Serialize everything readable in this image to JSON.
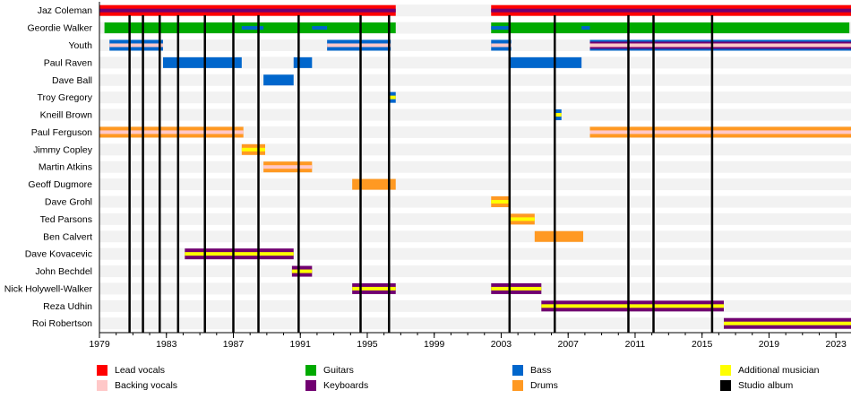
{
  "chart_data": {
    "type": "timeline",
    "xlim": [
      1979,
      2023.9
    ],
    "x_ticks": [
      1979,
      1983,
      1987,
      1991,
      1995,
      1999,
      2003,
      2007,
      2011,
      2015,
      2019,
      2023
    ],
    "minor_ticks": "yearly",
    "colors": {
      "lead_vocals": "#FF0000",
      "backing_vocals": "#FFC8C8",
      "guitars": "#00AA00",
      "keyboards": "#710071",
      "bass": "#0066CC",
      "drums": "#FF9922",
      "additional": "#FFFF00",
      "album": "#000000",
      "row_bg": "#F2F2F2"
    },
    "members": [
      {
        "name": "Jaz Coleman",
        "periods": [
          {
            "start": 1979,
            "end": 1996.7,
            "role": "lead_vocals",
            "stripes": [
              "keyboards"
            ]
          },
          {
            "start": 2002.4,
            "end": 2023.9,
            "role": "lead_vocals",
            "stripes": [
              "keyboards"
            ]
          }
        ]
      },
      {
        "name": "Geordie Walker",
        "periods": [
          {
            "start": 1979.3,
            "end": 1996.7,
            "role": "guitars",
            "stripes": []
          },
          {
            "start": 1987.5,
            "end": 1988.8,
            "role": "guitars",
            "stripes": [
              "bass"
            ],
            "overlay": true
          },
          {
            "start": 1991.7,
            "end": 1992.6,
            "role": "guitars",
            "stripes": [
              "bass"
            ],
            "overlay": true
          },
          {
            "start": 2002.4,
            "end": 2023.8,
            "role": "guitars",
            "stripes": []
          },
          {
            "start": 2002.4,
            "end": 2003.5,
            "role": "guitars",
            "stripes": [
              "bass"
            ],
            "overlay": true
          },
          {
            "start": 2007.8,
            "end": 2008.3,
            "role": "guitars",
            "stripes": [
              "bass"
            ],
            "overlay": true
          }
        ]
      },
      {
        "name": "Youth",
        "periods": [
          {
            "start": 1979.6,
            "end": 1982.8,
            "role": "bass",
            "stripes": [
              "backing_vocals"
            ]
          },
          {
            "start": 1992.6,
            "end": 1996.4,
            "role": "bass",
            "stripes": [
              "backing_vocals"
            ]
          },
          {
            "start": 2002.4,
            "end": 2003.6,
            "role": "bass",
            "stripes": [
              "backing_vocals"
            ]
          },
          {
            "start": 2008.3,
            "end": 2023.9,
            "role": "bass",
            "stripes": [
              "keyboards",
              "backing_vocals"
            ]
          }
        ]
      },
      {
        "name": "Paul Raven",
        "periods": [
          {
            "start": 1982.8,
            "end": 1987.5,
            "role": "bass",
            "stripes": []
          },
          {
            "start": 1990.6,
            "end": 1991.7,
            "role": "bass",
            "stripes": []
          },
          {
            "start": 2003.5,
            "end": 2007.8,
            "role": "bass",
            "stripes": []
          }
        ]
      },
      {
        "name": "Dave Ball",
        "periods": [
          {
            "start": 1988.8,
            "end": 1990.6,
            "role": "bass",
            "stripes": []
          }
        ]
      },
      {
        "name": "Troy Gregory",
        "periods": [
          {
            "start": 1996.3,
            "end": 1996.7,
            "role": "bass",
            "stripes": [
              "additional"
            ]
          }
        ]
      },
      {
        "name": "Kneill Brown",
        "periods": [
          {
            "start": 2006.2,
            "end": 2006.6,
            "role": "bass",
            "stripes": [
              "additional"
            ]
          }
        ]
      },
      {
        "name": "Paul Ferguson",
        "periods": [
          {
            "start": 1979,
            "end": 1987.6,
            "role": "drums",
            "stripes": [
              "backing_vocals"
            ]
          },
          {
            "start": 2008.3,
            "end": 2023.9,
            "role": "drums",
            "stripes": [
              "backing_vocals"
            ]
          }
        ]
      },
      {
        "name": "Jimmy Copley",
        "periods": [
          {
            "start": 1987.5,
            "end": 1988.9,
            "role": "drums",
            "stripes": [
              "additional"
            ]
          }
        ]
      },
      {
        "name": "Martin Atkins",
        "periods": [
          {
            "start": 1988.8,
            "end": 1991.7,
            "role": "drums",
            "stripes": [
              "backing_vocals"
            ]
          }
        ]
      },
      {
        "name": "Geoff Dugmore",
        "periods": [
          {
            "start": 1994.1,
            "end": 1996.7,
            "role": "drums",
            "stripes": []
          }
        ]
      },
      {
        "name": "Dave Grohl",
        "periods": [
          {
            "start": 2002.4,
            "end": 2003.5,
            "role": "drums",
            "stripes": [
              "additional"
            ]
          }
        ]
      },
      {
        "name": "Ted Parsons",
        "periods": [
          {
            "start": 2003.5,
            "end": 2005.0,
            "role": "drums",
            "stripes": [
              "additional"
            ]
          }
        ]
      },
      {
        "name": "Ben Calvert",
        "periods": [
          {
            "start": 2005.0,
            "end": 2007.9,
            "role": "drums",
            "stripes": []
          }
        ]
      },
      {
        "name": "Dave Kovacevic",
        "periods": [
          {
            "start": 1984.1,
            "end": 1990.6,
            "role": "keyboards",
            "stripes": [
              "additional"
            ]
          }
        ]
      },
      {
        "name": "John Bechdel",
        "periods": [
          {
            "start": 1990.5,
            "end": 1991.7,
            "role": "keyboards",
            "stripes": [
              "additional"
            ]
          }
        ]
      },
      {
        "name": "Nick Holywell-Walker",
        "periods": [
          {
            "start": 1994.1,
            "end": 1996.7,
            "role": "keyboards",
            "stripes": [
              "additional"
            ]
          },
          {
            "start": 2002.4,
            "end": 2005.4,
            "role": "keyboards",
            "stripes": [
              "additional"
            ]
          }
        ]
      },
      {
        "name": "Reza Udhin",
        "periods": [
          {
            "start": 2005.4,
            "end": 2016.3,
            "role": "keyboards",
            "stripes": [
              "additional"
            ]
          }
        ]
      },
      {
        "name": "Roi Robertson",
        "periods": [
          {
            "start": 2016.3,
            "end": 2023.9,
            "role": "keyboards",
            "stripes": [
              "additional"
            ]
          }
        ]
      }
    ],
    "studio_albums": [
      1980.8,
      1981.6,
      1982.6,
      1983.7,
      1985.3,
      1987.0,
      1988.5,
      1990.9,
      1994.6,
      1996.3,
      2003.5,
      2006.2,
      2010.6,
      2012.1,
      2015.6
    ],
    "legend": [
      {
        "label": "Lead vocals",
        "color": "#FF0000"
      },
      {
        "label": "Backing vocals",
        "color": "#FFC8C8"
      },
      {
        "label": "Guitars",
        "color": "#00AA00"
      },
      {
        "label": "Keyboards",
        "color": "#710071"
      },
      {
        "label": "Bass",
        "color": "#0066CC"
      },
      {
        "label": "Drums",
        "color": "#FF9922"
      },
      {
        "label": "Additional musician",
        "color": "#FFFF00"
      },
      {
        "label": "Studio album",
        "color": "#000000"
      }
    ],
    "legend_placement": "bottom"
  }
}
